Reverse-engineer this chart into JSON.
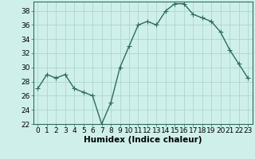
{
  "x": [
    0,
    1,
    2,
    3,
    4,
    5,
    6,
    7,
    8,
    9,
    10,
    11,
    12,
    13,
    14,
    15,
    16,
    17,
    18,
    19,
    20,
    21,
    22,
    23
  ],
  "y": [
    27.0,
    29.0,
    28.5,
    29.0,
    27.0,
    26.5,
    26.0,
    22.0,
    25.0,
    30.0,
    33.0,
    36.0,
    36.5,
    36.0,
    38.0,
    39.0,
    39.0,
    37.5,
    37.0,
    36.5,
    35.0,
    32.5,
    30.5,
    28.5
  ],
  "xlabel": "Humidex (Indice chaleur)",
  "ylim": [
    22,
    39
  ],
  "xlim": [
    -0.5,
    23.5
  ],
  "yticks": [
    22,
    24,
    26,
    28,
    30,
    32,
    34,
    36,
    38
  ],
  "xticks": [
    0,
    1,
    2,
    3,
    4,
    5,
    6,
    7,
    8,
    9,
    10,
    11,
    12,
    13,
    14,
    15,
    16,
    17,
    18,
    19,
    20,
    21,
    22,
    23
  ],
  "line_color": "#2e6b5e",
  "marker_color": "#2e6b5e",
  "bg_color": "#cff0ea",
  "grid_color": "#aad6ce",
  "xlabel_fontsize": 7.5,
  "tick_fontsize": 6.5,
  "line_width": 1.0,
  "marker_size": 2.5
}
